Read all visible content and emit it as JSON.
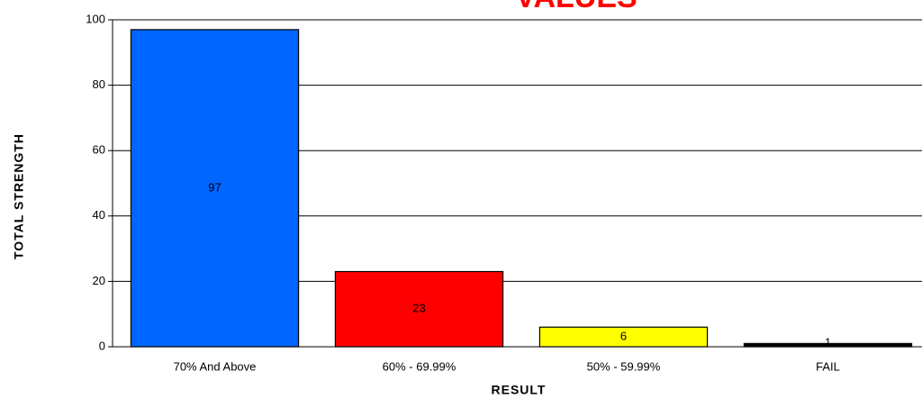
{
  "chart_data": {
    "type": "bar",
    "title": "VALUES",
    "categories": [
      "70% And Above",
      "60%  -  69.99%",
      "50%  -  59.99%",
      "FAIL"
    ],
    "values": [
      97,
      23,
      6,
      1
    ],
    "colors": [
      "#0066ff",
      "#ff0000",
      "#ffff00",
      "#000000"
    ],
    "x_label": "RESULT",
    "y_label": "TOTAL STRENGTH",
    "ylim": [
      0,
      100
    ],
    "yticks": [
      0,
      20,
      40,
      60,
      80,
      100
    ],
    "grid": true
  }
}
